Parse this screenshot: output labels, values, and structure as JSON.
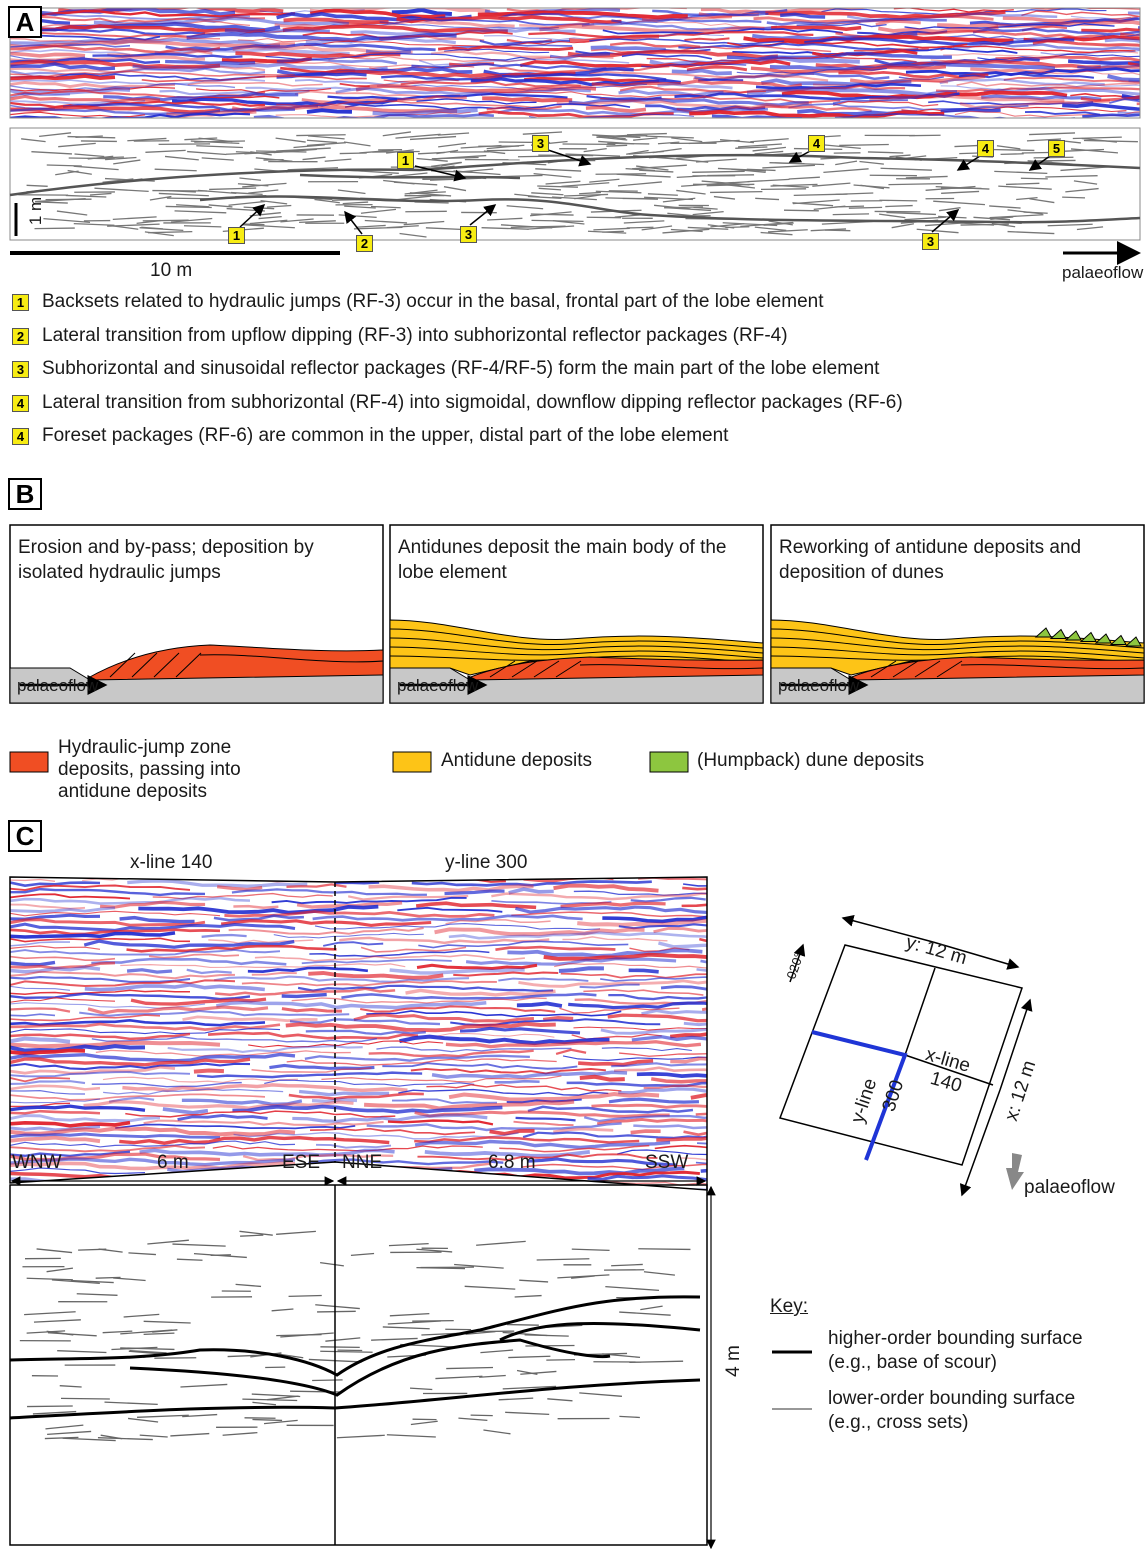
{
  "panel_a": {
    "label": "A",
    "callouts": [
      "1",
      "3",
      "4",
      "4",
      "5",
      "1",
      "2",
      "3",
      "3"
    ],
    "vertical_scale": "1 m",
    "horizontal_scale": "10 m",
    "flow_label": "palaeoflow",
    "notes": [
      {
        "marker": "1",
        "text": "Backsets related to hydraulic jumps (RF-3) occur in the basal, frontal part of the lobe element"
      },
      {
        "marker": "2",
        "text": "Lateral transition from upflow dipping (RF-3) into subhorizontal reflector packages (RF-4)"
      },
      {
        "marker": "3",
        "text": "Subhorizontal and sinusoidal reflector packages (RF-4/RF-5) form the main part of the lobe element"
      },
      {
        "marker": "4",
        "text": "Lateral transition from subhorizontal (RF-4) into sigmoidal, downflow dipping reflector packages (RF-6)"
      },
      {
        "marker": "4",
        "text": "Foreset packages (RF-6) are common in the upper, distal part of the lobe element"
      }
    ]
  },
  "panel_b": {
    "label": "B",
    "stages": [
      {
        "title": "Erosion and by-pass; deposition by isolated hydraulic jumps",
        "flow_label": "palaeoflow"
      },
      {
        "title": "Antidunes deposit the main body of the lobe element",
        "flow_label": "palaeoflow"
      },
      {
        "title": "Reworking of antidune deposits and deposition of dunes",
        "flow_label": "palaeoflow"
      }
    ],
    "legend": [
      {
        "label": "Hydraulic-jump zone deposits, passing into antidune deposits",
        "color": "#f04e23"
      },
      {
        "label": "Antidune deposits",
        "color": "#fdc417"
      },
      {
        "label": "(Humpback) dune deposits",
        "color": "#8dc63f"
      }
    ]
  },
  "panel_c": {
    "label": "C",
    "section_titles": [
      "x-line 140",
      "y-line 300"
    ],
    "orientations": [
      "WNW",
      "ESE",
      "NNE",
      "SSW"
    ],
    "lengths": [
      "6 m",
      "6.8 m"
    ],
    "depth": "4 m",
    "map": {
      "bearing": "020°",
      "y_extent": "y: 12 m",
      "x_extent": "x: 12 m",
      "x_line": [
        "x-line",
        "140"
      ],
      "y_line": [
        "y-line",
        "300"
      ],
      "flow_label": "palaeoflow"
    },
    "key": {
      "title": "Key:",
      "items": [
        {
          "label": "higher-order bounding surface",
          "example": "(e.g., base of scour)"
        },
        {
          "label": "lower-order bounding surface",
          "example": "(e.g., cross sets)"
        }
      ]
    }
  }
}
